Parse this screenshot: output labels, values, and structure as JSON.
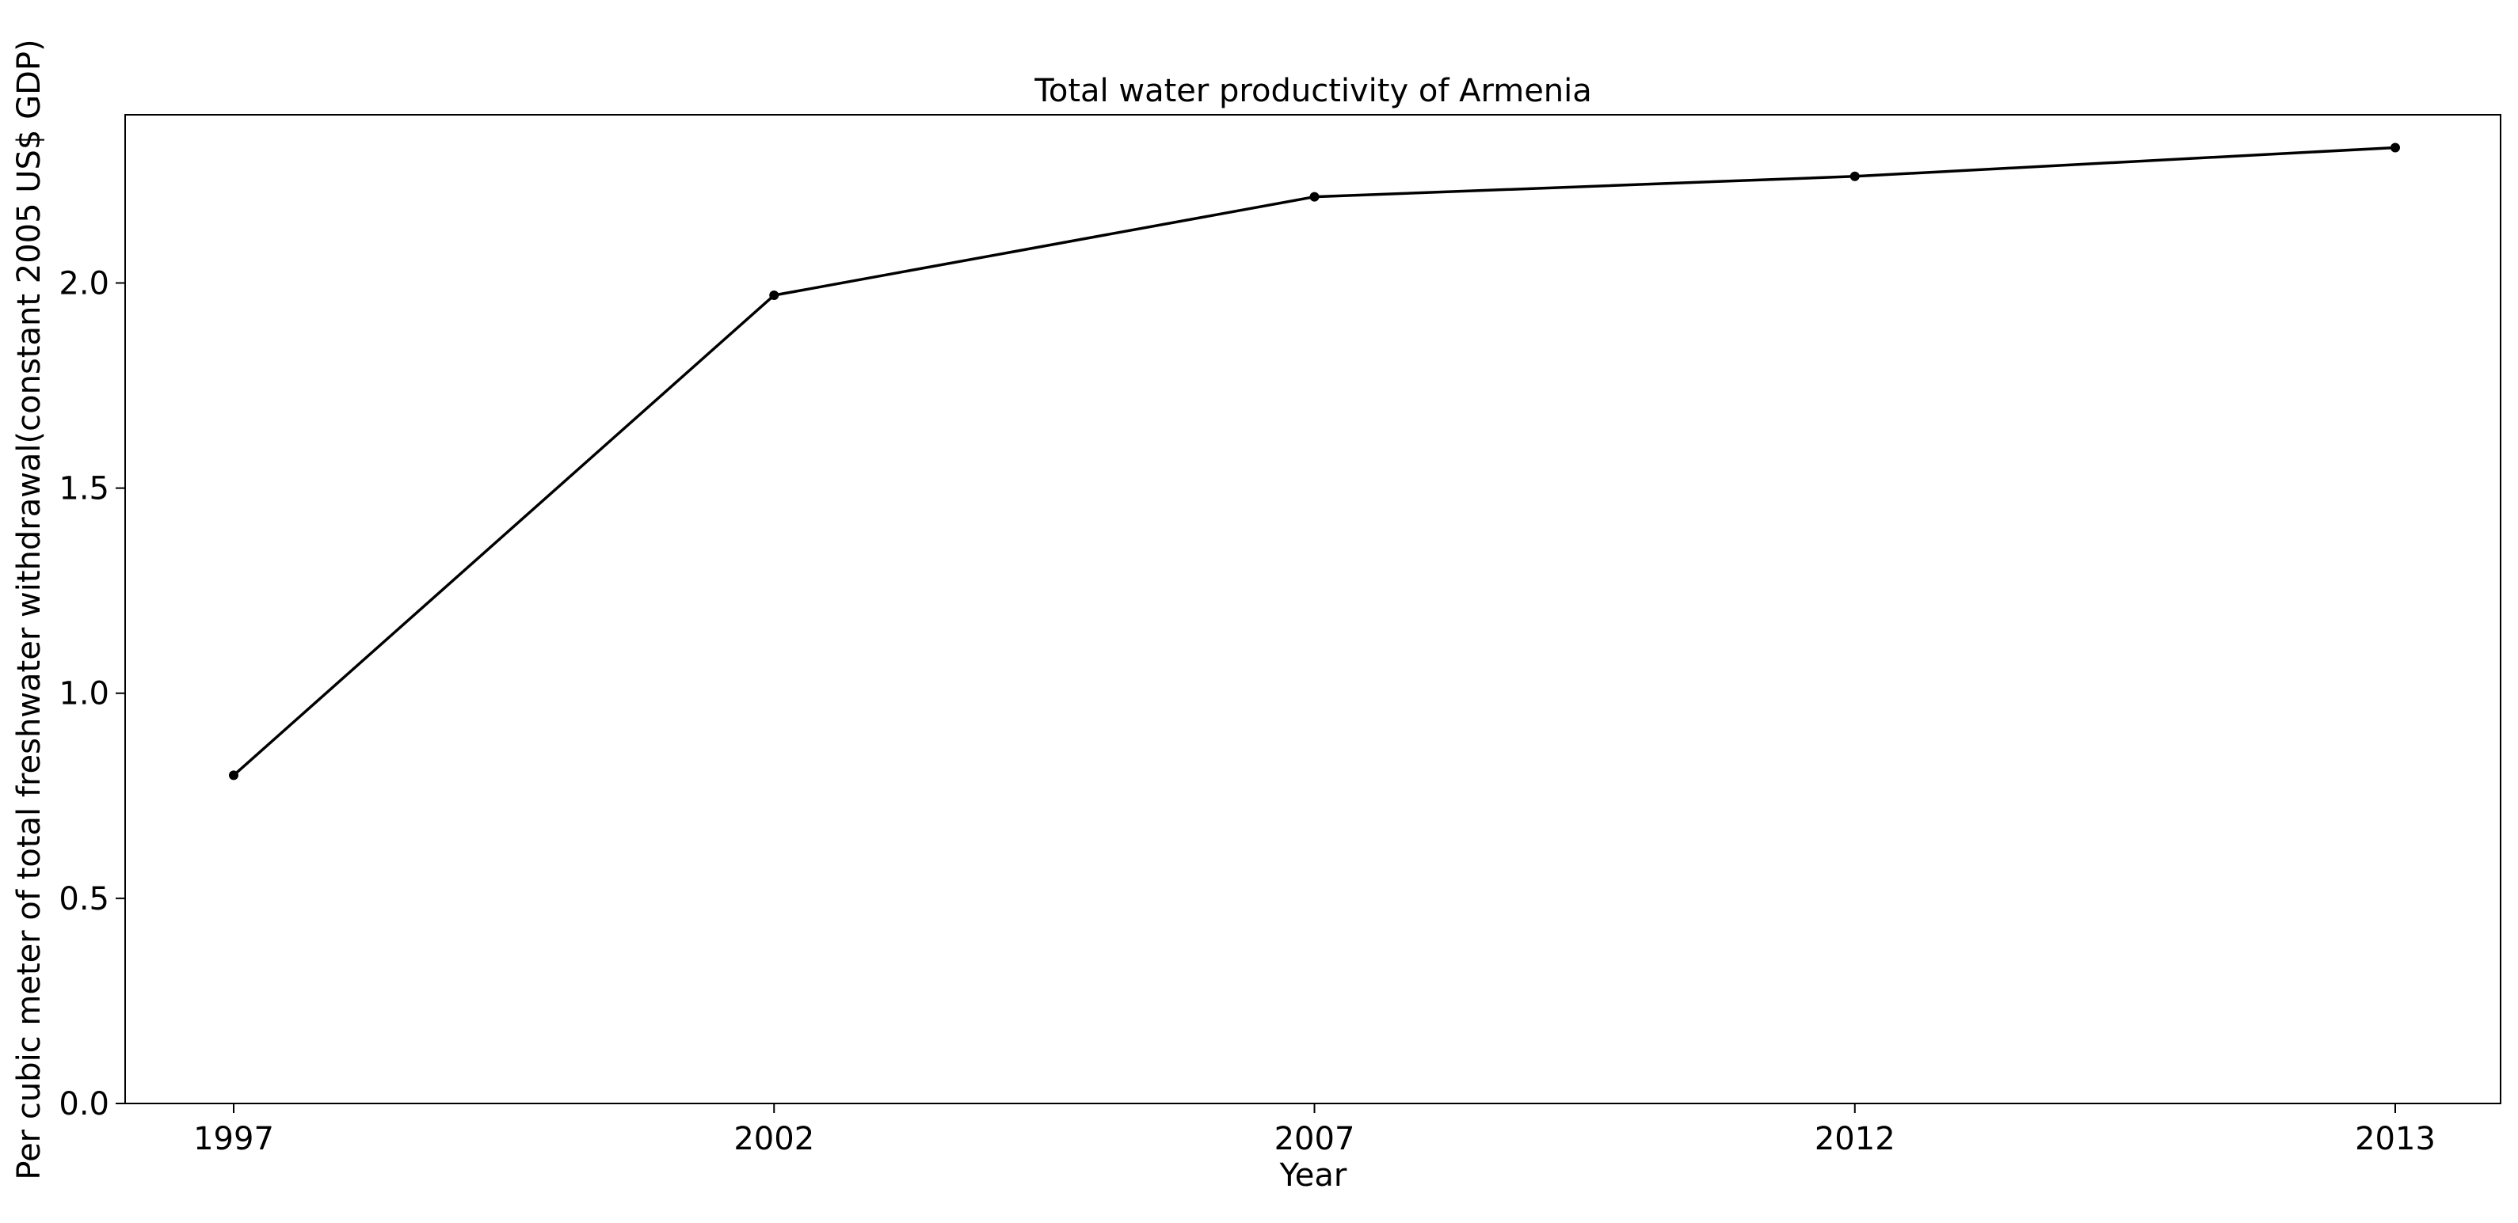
{
  "chart_data": {
    "type": "line",
    "title": "Total water productivity of Armenia",
    "xlabel": "Year",
    "ylabel": "Per cubic meter of total freshwater withdrawal(constant 2005 US$ GDP)",
    "categories": [
      "1997",
      "2002",
      "2007",
      "2012",
      "2013"
    ],
    "series": [
      {
        "values": [
          0.8,
          1.97,
          2.21,
          2.26,
          2.33
        ]
      }
    ],
    "ylim": [
      0,
      2.41
    ],
    "yticks": [
      0.0,
      0.5,
      1.0,
      1.5,
      2.0
    ],
    "ytick_labels": [
      "0.0",
      "0.5",
      "1.0",
      "1.5",
      "2.0"
    ],
    "grid": false,
    "line_color": "#000000"
  }
}
